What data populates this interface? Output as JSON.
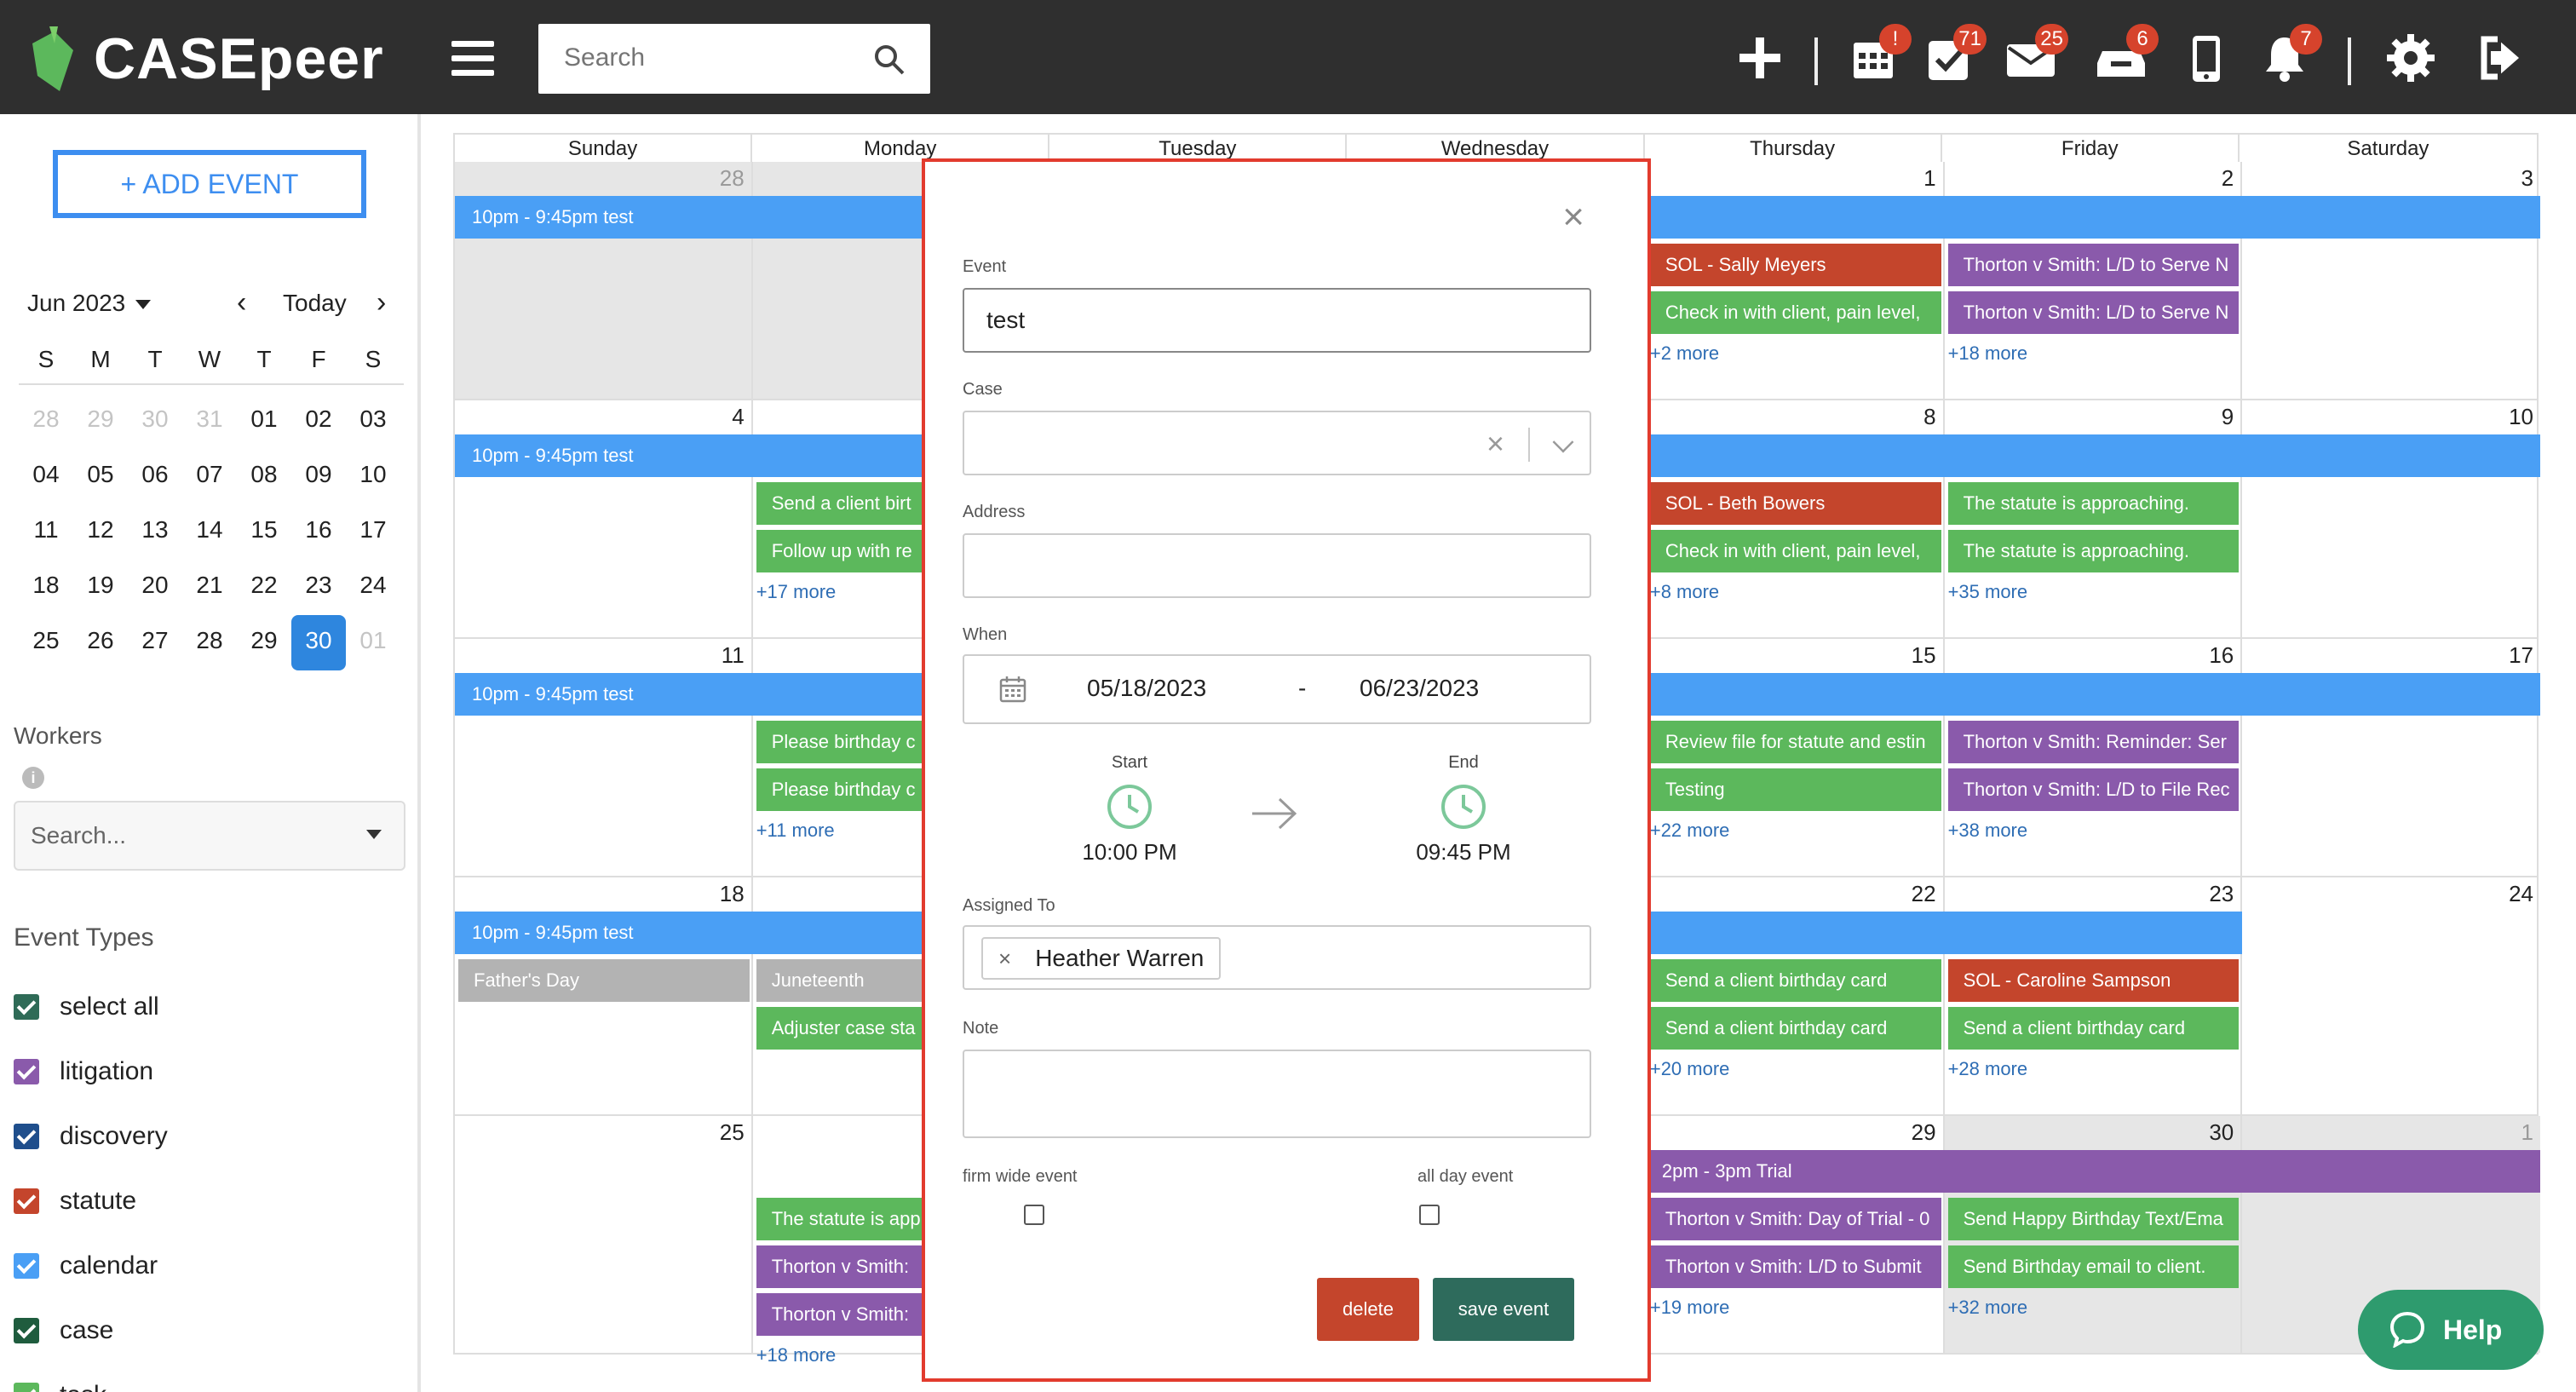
{
  "app": {
    "name": "CASEpeer"
  },
  "header": {
    "search_placeholder": "Search",
    "badges": {
      "calendar": "!",
      "tasks": "71",
      "mail": "25",
      "inbox": "6",
      "notifications": "7"
    }
  },
  "sidebar": {
    "add_event_label": "+ ADD EVENT",
    "month_label": "Jun 2023",
    "today_label": "Today",
    "weekday_initials": [
      "S",
      "M",
      "T",
      "W",
      "T",
      "F",
      "S"
    ],
    "mini_weeks": [
      [
        "28",
        "29",
        "30",
        "31",
        "01",
        "02",
        "03"
      ],
      [
        "04",
        "05",
        "06",
        "07",
        "08",
        "09",
        "10"
      ],
      [
        "11",
        "12",
        "13",
        "14",
        "15",
        "16",
        "17"
      ],
      [
        "18",
        "19",
        "20",
        "21",
        "22",
        "23",
        "24"
      ],
      [
        "25",
        "26",
        "27",
        "28",
        "29",
        "30",
        "01"
      ]
    ],
    "selected_day": "30",
    "workers_label": "Workers",
    "workers_placeholder": "Search...",
    "event_types_label": "Event Types",
    "event_types": [
      {
        "label": "select all",
        "color": "#2f6b57"
      },
      {
        "label": "litigation",
        "color": "#8a5aab"
      },
      {
        "label": "discovery",
        "color": "#1f4e8c"
      },
      {
        "label": "statute",
        "color": "#c4452c"
      },
      {
        "label": "calendar",
        "color": "#4a9ff5"
      },
      {
        "label": "case",
        "color": "#1f5c3e"
      },
      {
        "label": "task",
        "color": "#5cb85c"
      }
    ]
  },
  "calendar": {
    "day_headers": [
      "Sunday",
      "Monday",
      "Tuesday",
      "Wednesday",
      "Thursday",
      "Friday",
      "Saturday"
    ],
    "weeks": [
      {
        "days": [
          "28",
          "",
          "",
          "",
          "1",
          "2",
          "3"
        ],
        "bar": "10pm - 9:45pm test"
      },
      {
        "days": [
          "4",
          "",
          "",
          "",
          "8",
          "9",
          "10"
        ],
        "bar": "10pm - 9:45pm test"
      },
      {
        "days": [
          "11",
          "",
          "",
          "",
          "15",
          "16",
          "17"
        ],
        "bar": "10pm - 9:45pm test"
      },
      {
        "days": [
          "18",
          "",
          "",
          "",
          "22",
          "23",
          "24"
        ],
        "bar": "10pm - 9:45pm test"
      },
      {
        "days": [
          "25",
          "",
          "",
          "",
          "29",
          "30",
          "1"
        ],
        "bar": "2pm - 3pm Trial"
      }
    ],
    "events": {
      "w1": {
        "thu": [
          "SOL - Sally Meyers",
          "Check in with client, pain level,"
        ],
        "thu_more": "+2 more",
        "fri": [
          "Thorton v Smith: L/D to Serve N",
          "Thorton v Smith: L/D to Serve N"
        ],
        "fri_more": "+18 more"
      },
      "w2": {
        "mon": [
          "Send a client birt",
          "Follow up with re"
        ],
        "mon_more": "+17 more",
        "thu": [
          "SOL - Beth Bowers",
          "Check in with client, pain level,"
        ],
        "thu_more": "+8 more",
        "fri": [
          "The statute is approaching.",
          "The statute is approaching."
        ],
        "fri_more": "+35 more"
      },
      "w3": {
        "mon": [
          "Please birthday c",
          "Please birthday c"
        ],
        "mon_more": "+11 more",
        "thu": [
          "Review file for statute and estin",
          "Testing"
        ],
        "thu_more": "+22 more",
        "fri": [
          "Thorton v Smith: Reminder: Ser",
          "Thorton v Smith: L/D to File Rec"
        ],
        "fri_more": "+38 more"
      },
      "w4": {
        "sun": "Father's Day",
        "mon": [
          "Juneteenth",
          "Adjuster case sta"
        ],
        "thu": [
          "Send a client birthday card",
          "Send a client birthday card"
        ],
        "thu_more": "+20 more",
        "fri": [
          "SOL - Caroline Sampson",
          "Send a client birthday card"
        ],
        "fri_more": "+28 more"
      },
      "w5": {
        "mon": [
          "The statute is app",
          "Thorton v Smith: ",
          "Thorton v Smith: "
        ],
        "mon_more": "+18 more",
        "thu": [
          "Thorton v Smith: Day of Trial - 0",
          "Thorton v Smith: L/D to Submit"
        ],
        "thu_more": "+19 more",
        "fri": [
          "Send Happy Birthday Text/Ema",
          "Send Birthday email to client."
        ],
        "fri_more": "+32 more"
      }
    }
  },
  "modal": {
    "event_label": "Event",
    "event_value": "test",
    "case_label": "Case",
    "address_label": "Address",
    "when_label": "When",
    "date_start": "05/18/2023",
    "date_sep": "-",
    "date_end": "06/23/2023",
    "start_label": "Start",
    "start_time": "10:00 PM",
    "end_label": "End",
    "end_time": "09:45 PM",
    "assigned_label": "Assigned To",
    "assignee": "Heather Warren",
    "note_label": "Note",
    "firm_wide_label": "firm wide event",
    "all_day_label": "all day event",
    "delete_label": "delete",
    "save_label": "save event"
  },
  "help": {
    "label": "Help"
  },
  "colors": {
    "blue_bar": "#4a9ff5",
    "green": "#5cb85c",
    "red": "#c4452c",
    "purple": "#8a5aab",
    "gray_event": "#b3b3b3"
  }
}
